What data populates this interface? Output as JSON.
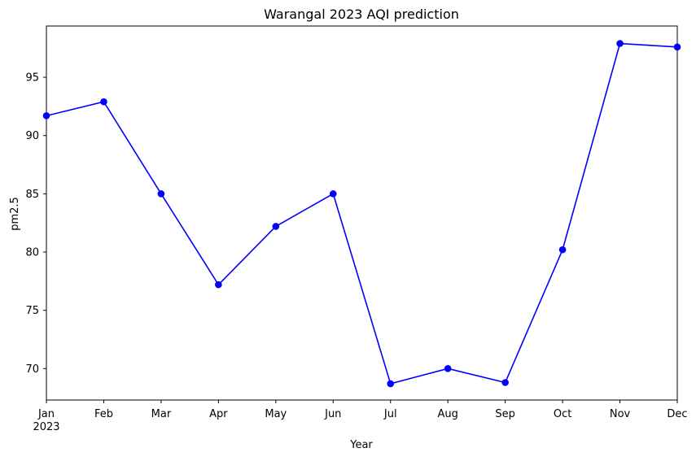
{
  "chart_data": {
    "type": "line",
    "title": "Warangal 2023 AQI prediction",
    "xlabel": "Year",
    "ylabel": "pm2.5",
    "year_label": "2023",
    "categories": [
      "Jan",
      "Feb",
      "Mar",
      "Apr",
      "May",
      "Jun",
      "Jul",
      "Aug",
      "Sep",
      "Oct",
      "Nov",
      "Dec"
    ],
    "series": [
      {
        "values": [
          91.7,
          92.9,
          85.0,
          77.2,
          82.2,
          85.0,
          68.7,
          70.0,
          68.8,
          80.2,
          97.9,
          97.6
        ],
        "color": "#0000ff",
        "marker": "circle"
      }
    ],
    "ylim": [
      67.3,
      99.4
    ],
    "yticks": [
      70,
      75,
      80,
      85,
      90,
      95
    ],
    "grid": false,
    "legend": "none"
  }
}
